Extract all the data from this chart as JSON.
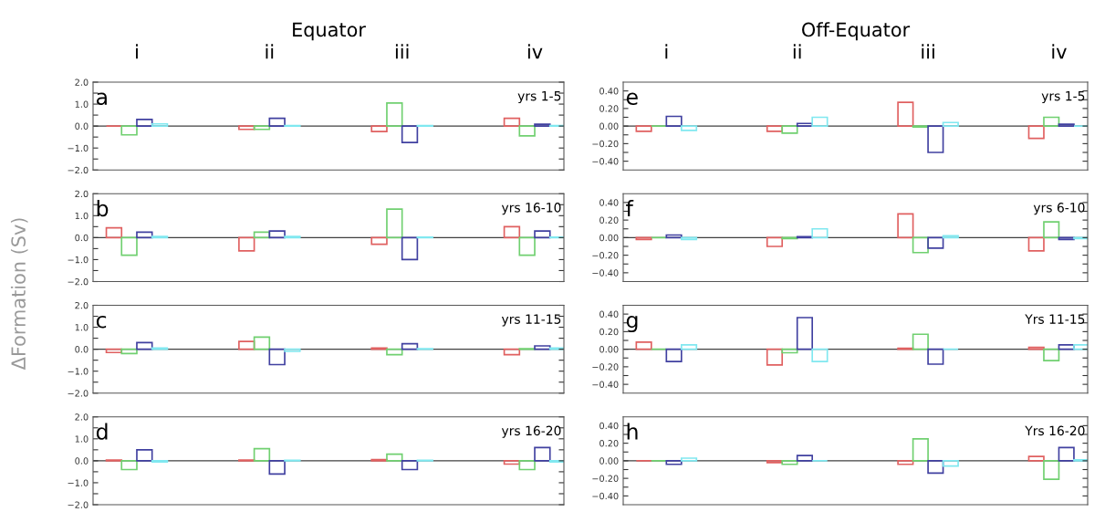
{
  "chart_data": [
    {
      "type": "bar",
      "title": "Equator",
      "ylabel": "ΔFormation (Sv)",
      "categories": [
        "i",
        "ii",
        "iii",
        "iv"
      ],
      "annotations": [
        "a",
        "yrs 1-5"
      ],
      "ylim": [
        -2,
        2
      ],
      "yticks": [
        {
          "value": -2,
          "label": "−2.0"
        },
        {
          "value": -1.5,
          "label": null
        },
        {
          "value": -1,
          "label": "−1.0"
        },
        {
          "value": -0.5,
          "label": null
        },
        {
          "value": 0,
          "label": "0.0"
        },
        {
          "value": 0.5,
          "label": null
        },
        {
          "value": 1,
          "label": "1.0"
        },
        {
          "value": 1.5,
          "label": null
        },
        {
          "value": 2,
          "label": "2.0"
        }
      ],
      "ref_lines": [
        {
          "axis": "y",
          "value": 0,
          "color": "#404040"
        }
      ],
      "series": [
        {
          "color": "#e06060",
          "values": [
            0.0,
            -0.15,
            -0.25,
            0.35
          ]
        },
        {
          "color": "#70d070",
          "values": [
            -0.4,
            -0.15,
            1.05,
            -0.45
          ]
        },
        {
          "color": "#4040a0",
          "values": [
            0.3,
            0.35,
            -0.75,
            0.08
          ]
        },
        {
          "color": "#80e8f0",
          "values": [
            0.1,
            0.02,
            0.02,
            0.02
          ]
        }
      ]
    },
    {
      "type": "bar",
      "title": "Off-Equator",
      "categories": [
        "i",
        "ii",
        "iii",
        "iv"
      ],
      "annotations": [
        "e",
        "yrs 1-5"
      ],
      "ylim": [
        -0.5,
        0.5
      ],
      "yticks": [
        {
          "value": -0.4,
          "label": "−0.40"
        },
        {
          "value": -0.3,
          "label": null
        },
        {
          "value": -0.2,
          "label": "−0.20"
        },
        {
          "value": -0.1,
          "label": null
        },
        {
          "value": 0,
          "label": "0.00"
        },
        {
          "value": 0.1,
          "label": null
        },
        {
          "value": 0.2,
          "label": "0.20"
        },
        {
          "value": 0.3,
          "label": null
        },
        {
          "value": 0.4,
          "label": "0.40"
        }
      ],
      "ref_lines": [
        {
          "axis": "y",
          "value": 0,
          "color": "#404040"
        }
      ],
      "series": [
        {
          "color": "#e06060",
          "values": [
            -0.06,
            -0.06,
            0.27,
            -0.14
          ]
        },
        {
          "color": "#70d070",
          "values": [
            0.0,
            -0.08,
            -0.01,
            0.1
          ]
        },
        {
          "color": "#4040a0",
          "values": [
            0.11,
            0.03,
            -0.3,
            0.02
          ]
        },
        {
          "color": "#80e8f0",
          "values": [
            -0.05,
            0.1,
            0.04,
            0.0
          ]
        }
      ]
    },
    {
      "type": "bar",
      "categories": [
        null,
        null,
        null,
        null
      ],
      "annotations": [
        "b",
        "yrs 16-10"
      ],
      "ylim": [
        -2,
        2
      ],
      "yticks": [
        {
          "value": -2,
          "label": "−2.0"
        },
        {
          "value": -1.5,
          "label": null
        },
        {
          "value": -1,
          "label": "−1.0"
        },
        {
          "value": -0.5,
          "label": null
        },
        {
          "value": 0,
          "label": "0.0"
        },
        {
          "value": 0.5,
          "label": null
        },
        {
          "value": 1,
          "label": "1.0"
        },
        {
          "value": 1.5,
          "label": null
        },
        {
          "value": 2,
          "label": "2.0"
        }
      ],
      "ref_lines": [
        {
          "axis": "y",
          "value": 0,
          "color": "#404040"
        }
      ],
      "series": [
        {
          "color": "#e06060",
          "values": [
            0.45,
            -0.6,
            -0.3,
            0.5
          ]
        },
        {
          "color": "#70d070",
          "values": [
            -0.8,
            0.25,
            1.3,
            -0.8
          ]
        },
        {
          "color": "#4040a0",
          "values": [
            0.25,
            0.3,
            -1.0,
            0.3
          ]
        },
        {
          "color": "#80e8f0",
          "values": [
            0.05,
            0.05,
            0.02,
            0.02
          ]
        }
      ]
    },
    {
      "type": "bar",
      "categories": [
        null,
        null,
        null,
        null
      ],
      "annotations": [
        "f",
        "yrs 6-10"
      ],
      "ylim": [
        -0.5,
        0.5
      ],
      "yticks": [
        {
          "value": -0.4,
          "label": "−0.40"
        },
        {
          "value": -0.3,
          "label": null
        },
        {
          "value": -0.2,
          "label": "−0.20"
        },
        {
          "value": -0.1,
          "label": null
        },
        {
          "value": 0,
          "label": "0.00"
        },
        {
          "value": 0.1,
          "label": null
        },
        {
          "value": 0.2,
          "label": "0.20"
        },
        {
          "value": 0.3,
          "label": null
        },
        {
          "value": 0.4,
          "label": "0.40"
        }
      ],
      "ref_lines": [
        {
          "axis": "y",
          "value": 0,
          "color": "#404040"
        }
      ],
      "series": [
        {
          "color": "#e06060",
          "values": [
            -0.02,
            -0.1,
            0.27,
            -0.15
          ]
        },
        {
          "color": "#70d070",
          "values": [
            0.0,
            -0.01,
            -0.17,
            0.18
          ]
        },
        {
          "color": "#4040a0",
          "values": [
            0.03,
            0.01,
            -0.12,
            -0.02
          ]
        },
        {
          "color": "#80e8f0",
          "values": [
            -0.02,
            0.1,
            0.02,
            -0.01
          ]
        }
      ]
    },
    {
      "type": "bar",
      "categories": [
        null,
        null,
        null,
        null
      ],
      "annotations": [
        "c",
        "yrs 11-15"
      ],
      "ylim": [
        -2,
        2
      ],
      "yticks": [
        {
          "value": -2,
          "label": "−2.0"
        },
        {
          "value": -1.5,
          "label": null
        },
        {
          "value": -1,
          "label": "−1.0"
        },
        {
          "value": -0.5,
          "label": null
        },
        {
          "value": 0,
          "label": "0.0"
        },
        {
          "value": 0.5,
          "label": null
        },
        {
          "value": 1,
          "label": "1.0"
        },
        {
          "value": 1.5,
          "label": null
        },
        {
          "value": 2,
          "label": "2.0"
        }
      ],
      "ref_lines": [
        {
          "axis": "y",
          "value": 0,
          "color": "#404040"
        }
      ],
      "series": [
        {
          "color": "#e06060",
          "values": [
            -0.15,
            0.35,
            0.05,
            -0.25
          ]
        },
        {
          "color": "#70d070",
          "values": [
            -0.2,
            0.55,
            -0.25,
            0.02
          ]
        },
        {
          "color": "#4040a0",
          "values": [
            0.3,
            -0.7,
            0.25,
            0.15
          ]
        },
        {
          "color": "#80e8f0",
          "values": [
            0.05,
            -0.1,
            0.02,
            0.05
          ]
        }
      ]
    },
    {
      "type": "bar",
      "categories": [
        null,
        null,
        null,
        null
      ],
      "annotations": [
        "g",
        "Yrs 11-15"
      ],
      "ylim": [
        -0.5,
        0.5
      ],
      "yticks": [
        {
          "value": -0.4,
          "label": "−0.40"
        },
        {
          "value": -0.3,
          "label": null
        },
        {
          "value": -0.2,
          "label": "−0.20"
        },
        {
          "value": -0.1,
          "label": null
        },
        {
          "value": 0,
          "label": "0.00"
        },
        {
          "value": 0.1,
          "label": null
        },
        {
          "value": 0.2,
          "label": "0.20"
        },
        {
          "value": 0.3,
          "label": null
        },
        {
          "value": 0.4,
          "label": "0.40"
        }
      ],
      "ref_lines": [
        {
          "axis": "y",
          "value": 0,
          "color": "#404040"
        }
      ],
      "series": [
        {
          "color": "#e06060",
          "values": [
            0.08,
            -0.18,
            0.01,
            0.02
          ]
        },
        {
          "color": "#70d070",
          "values": [
            0.0,
            -0.04,
            0.17,
            -0.13
          ]
        },
        {
          "color": "#4040a0",
          "values": [
            -0.14,
            0.36,
            -0.17,
            0.05
          ]
        },
        {
          "color": "#80e8f0",
          "values": [
            0.05,
            -0.14,
            0.0,
            0.05
          ]
        }
      ]
    },
    {
      "type": "bar",
      "categories": [
        null,
        null,
        null,
        null
      ],
      "annotations": [
        "d",
        "yrs 16-20"
      ],
      "ylim": [
        -2,
        2
      ],
      "yticks": [
        {
          "value": -2,
          "label": "−2.0"
        },
        {
          "value": -1.5,
          "label": null
        },
        {
          "value": -1,
          "label": "−1.0"
        },
        {
          "value": -0.5,
          "label": null
        },
        {
          "value": 0,
          "label": "0.0"
        },
        {
          "value": 0.5,
          "label": null
        },
        {
          "value": 1,
          "label": "1.0"
        },
        {
          "value": 1.5,
          "label": null
        },
        {
          "value": 2,
          "label": "2.0"
        }
      ],
      "ref_lines": [
        {
          "axis": "y",
          "value": 0,
          "color": "#404040"
        }
      ],
      "series": [
        {
          "color": "#e06060",
          "values": [
            0.03,
            0.03,
            0.05,
            -0.15
          ]
        },
        {
          "color": "#70d070",
          "values": [
            -0.4,
            0.55,
            0.3,
            -0.4
          ]
        },
        {
          "color": "#4040a0",
          "values": [
            0.5,
            -0.6,
            -0.4,
            0.6
          ]
        },
        {
          "color": "#80e8f0",
          "values": [
            -0.05,
            0.02,
            0.02,
            -0.05
          ]
        }
      ]
    },
    {
      "type": "bar",
      "categories": [
        null,
        null,
        null,
        null
      ],
      "annotations": [
        "h",
        "Yrs 16-20"
      ],
      "ylim": [
        -0.5,
        0.5
      ],
      "yticks": [
        {
          "value": -0.4,
          "label": "−0.40"
        },
        {
          "value": -0.3,
          "label": null
        },
        {
          "value": -0.2,
          "label": "−0.20"
        },
        {
          "value": -0.1,
          "label": null
        },
        {
          "value": 0,
          "label": "0.00"
        },
        {
          "value": 0.1,
          "label": null
        },
        {
          "value": 0.2,
          "label": "0.20"
        },
        {
          "value": 0.3,
          "label": null
        },
        {
          "value": 0.4,
          "label": "0.40"
        }
      ],
      "ref_lines": [
        {
          "axis": "y",
          "value": 0,
          "color": "#404040"
        }
      ],
      "series": [
        {
          "color": "#e06060",
          "values": [
            0.0,
            -0.02,
            -0.04,
            0.05
          ]
        },
        {
          "color": "#70d070",
          "values": [
            0.0,
            -0.04,
            0.25,
            -0.21
          ]
        },
        {
          "color": "#4040a0",
          "values": [
            -0.04,
            0.06,
            -0.14,
            0.15
          ]
        },
        {
          "color": "#80e8f0",
          "values": [
            0.03,
            0.0,
            -0.06,
            0.01
          ]
        }
      ]
    }
  ]
}
